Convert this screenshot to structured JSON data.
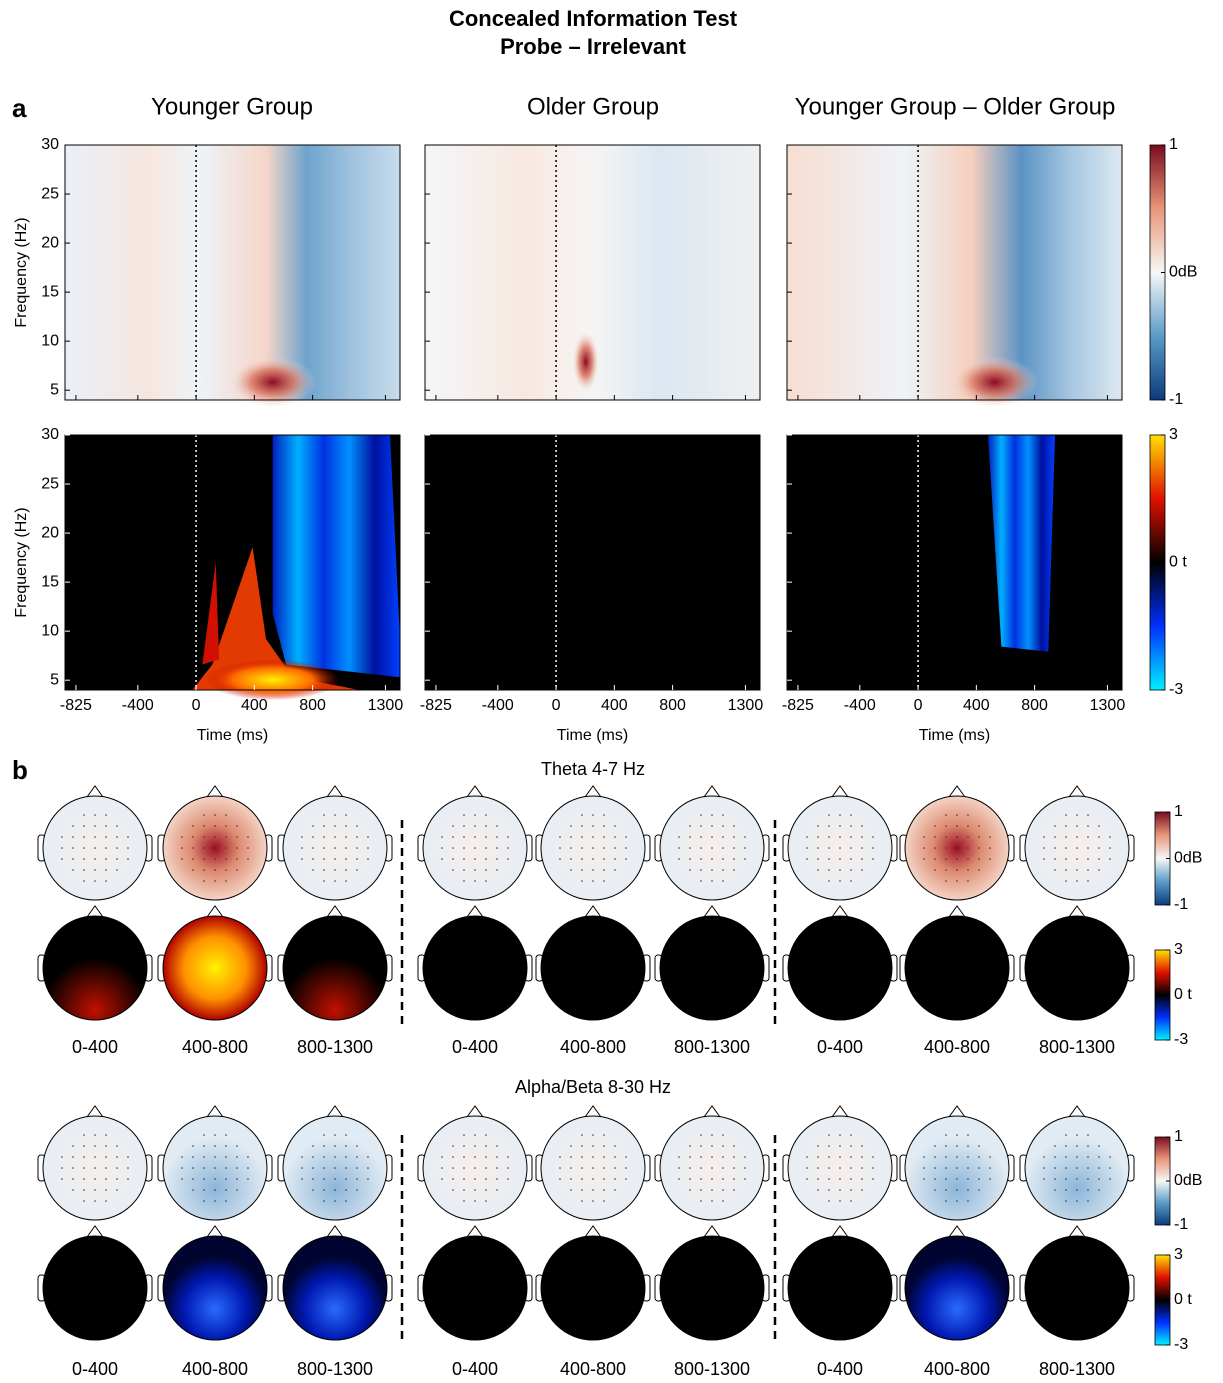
{
  "title": [
    "Concealed Information Test",
    "Probe – Irrelevant"
  ],
  "panel_labels": [
    "a",
    "b"
  ],
  "columns": [
    "Younger Group",
    "Older Group",
    "Younger Group – Older Group"
  ],
  "chart_data": {
    "type": "heatmap",
    "xlabel": "Time (ms)",
    "ylabel": "Frequency (Hz)",
    "xlim": [
      -900,
      1400
    ],
    "xticks": [
      -825,
      -400,
      0,
      400,
      800,
      1300
    ],
    "ylim": [
      4,
      30
    ],
    "yticks": [
      5,
      10,
      15,
      20,
      25,
      30
    ]
  },
  "colorbars": [
    {
      "lim": [
        -1,
        1
      ],
      "ticks": [
        1,
        {
          "value": 0,
          "label": "0dB"
        },
        -1
      ]
    },
    {
      "lim": [
        -3,
        3
      ],
      "ticks": [
        3,
        {
          "value": 0,
          "label": "0 t"
        },
        -3
      ]
    }
  ],
  "topo_bands": [
    "Theta 4-7 Hz",
    "Alpha/Beta 8-30 Hz"
  ],
  "windows": [
    "0-400",
    "400-800",
    "800-1300"
  ]
}
